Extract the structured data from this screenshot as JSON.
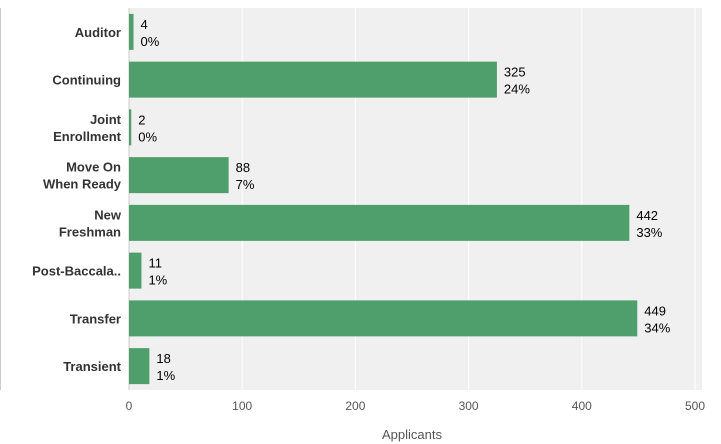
{
  "chart_data": {
    "type": "bar",
    "orientation": "horizontal",
    "categories": [
      [
        "Auditor"
      ],
      [
        "Continuing"
      ],
      [
        "Joint",
        "Enrollment"
      ],
      [
        "Move On",
        "When Ready"
      ],
      [
        "New",
        "Freshman"
      ],
      [
        "Post-Baccala.."
      ],
      [
        "Transfer"
      ],
      [
        "Transient"
      ]
    ],
    "values": [
      4,
      325,
      2,
      88,
      442,
      11,
      449,
      18
    ],
    "percent_labels": [
      "0%",
      "24%",
      "0%",
      "7%",
      "33%",
      "1%",
      "34%",
      "1%"
    ],
    "xlabel": "Applicants",
    "xlim": [
      0,
      500
    ],
    "xticks": [
      0,
      100,
      200,
      300,
      400,
      500
    ],
    "grid": true,
    "colors": {
      "bar": "#4e9f6c",
      "plot_background": "#f0f0f0",
      "gridline": "#ffffff",
      "axis_line": "#cccccc"
    }
  }
}
